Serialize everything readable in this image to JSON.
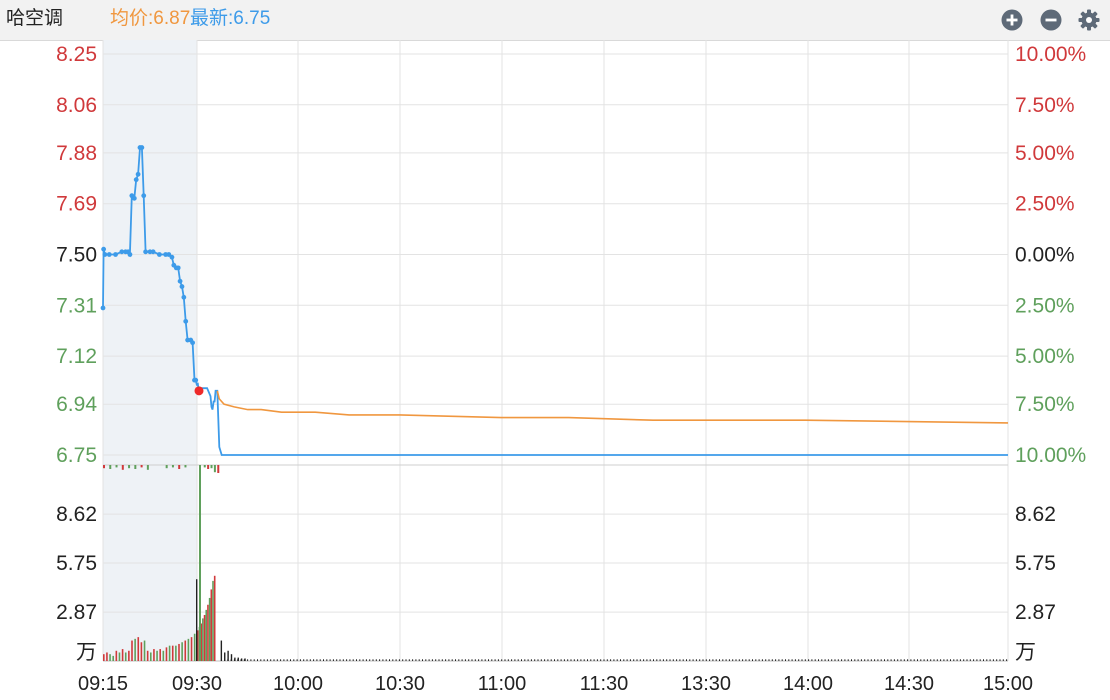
{
  "header": {
    "stock_name": "哈空调",
    "avg_label": "均价:6.87",
    "last_label": "最新:6.75",
    "avg_color": "#f0973f",
    "last_color": "#3d9be9",
    "icons": [
      "plus-circle-icon",
      "minus-circle-icon",
      "gear-icon"
    ]
  },
  "colors": {
    "up": "#d0393b",
    "down": "#5fa05c",
    "neutral": "#222222",
    "price_line": "#3d9be9",
    "avg_line": "#f0973f",
    "auction_bg": "#eef2f6",
    "grid": "#e3e3e3"
  },
  "chart_data": {
    "type": "line",
    "title": "",
    "x_ticks": [
      "09:15",
      "09:30",
      "10:00",
      "10:30",
      "11:00",
      "11:30",
      "13:30",
      "14:00",
      "14:30",
      "15:00"
    ],
    "price_axis": {
      "ylim": [
        6.75,
        8.25
      ],
      "left_ticks": [
        "8.25",
        "8.06",
        "7.88",
        "7.69",
        "7.50",
        "7.31",
        "7.12",
        "6.94",
        "6.75"
      ],
      "left_tick_values": [
        8.25,
        8.06,
        7.88,
        7.69,
        7.5,
        7.31,
        7.12,
        6.94,
        6.75
      ],
      "right_ticks": [
        "10.00%",
        "7.50%",
        "5.00%",
        "2.50%",
        "0.00%",
        "2.50%",
        "5.00%",
        "7.50%",
        "10.00%"
      ],
      "prev_close": 7.5
    },
    "volume_axis": {
      "unit": "万",
      "ticks": [
        "8.62",
        "5.75",
        "2.87"
      ],
      "tick_values": [
        8.62,
        5.75,
        2.87
      ],
      "ylim": [
        0,
        11.5
      ]
    },
    "series": [
      {
        "name": "最新",
        "note_x_in_minutes": "x is minutes since 09:15, 0-255",
        "points": [
          [
            0,
            7.3
          ],
          [
            0.1,
            7.52
          ],
          [
            0.3,
            7.5
          ],
          [
            1,
            7.5
          ],
          [
            2,
            7.5
          ],
          [
            3,
            7.51
          ],
          [
            3.6,
            7.51
          ],
          [
            4,
            7.51
          ],
          [
            4.3,
            7.5
          ],
          [
            4.6,
            7.72
          ],
          [
            5,
            7.71
          ],
          [
            5.3,
            7.78
          ],
          [
            5.6,
            7.8
          ],
          [
            5.9,
            7.9
          ],
          [
            6.2,
            7.9
          ],
          [
            6.5,
            7.72
          ],
          [
            6.8,
            7.51
          ],
          [
            7.5,
            7.51
          ],
          [
            8,
            7.51
          ],
          [
            9,
            7.5
          ],
          [
            10,
            7.5
          ],
          [
            10.5,
            7.5
          ],
          [
            11,
            7.49
          ],
          [
            11.3,
            7.46
          ],
          [
            11.7,
            7.45
          ],
          [
            12,
            7.45
          ],
          [
            12.3,
            7.4
          ],
          [
            12.6,
            7.38
          ],
          [
            12.9,
            7.34
          ],
          [
            13.2,
            7.25
          ],
          [
            13.5,
            7.18
          ],
          [
            14,
            7.18
          ],
          [
            14.3,
            7.17
          ],
          [
            14.6,
            7.03
          ],
          [
            14.8,
            7.03
          ],
          [
            15,
            7.01
          ],
          [
            15.2,
            7.02
          ],
          [
            15.4,
            7.0
          ],
          [
            16,
            7.0
          ],
          [
            17,
            7.0
          ],
          [
            18,
            7.0
          ],
          [
            19,
            6.97
          ],
          [
            19.3,
            6.93
          ],
          [
            19.6,
            6.92
          ],
          [
            19.9,
            6.95
          ],
          [
            20.2,
            6.95
          ],
          [
            20.5,
            6.99
          ],
          [
            21,
            6.99
          ],
          [
            21.6,
            6.78
          ],
          [
            22.3,
            6.75
          ],
          [
            255,
            6.75
          ]
        ]
      },
      {
        "name": "均价",
        "points": [
          [
            21,
            6.99
          ],
          [
            21.6,
            6.96
          ],
          [
            23,
            6.94
          ],
          [
            26,
            6.93
          ],
          [
            30,
            6.92
          ],
          [
            34,
            6.92
          ],
          [
            40,
            6.91
          ],
          [
            50,
            6.91
          ],
          [
            60,
            6.9
          ],
          [
            75,
            6.9
          ],
          [
            105,
            6.89
          ],
          [
            125,
            6.89
          ],
          [
            150,
            6.88
          ],
          [
            195,
            6.88
          ],
          [
            255,
            6.87
          ]
        ]
      }
    ],
    "volume": {
      "auction_bars": [
        [
          0,
          0.4,
          "up"
        ],
        [
          0.5,
          0.5,
          "up"
        ],
        [
          1,
          0.4,
          "down"
        ],
        [
          1.5,
          0.3,
          "down"
        ],
        [
          2,
          0.6,
          "up"
        ],
        [
          2.5,
          0.5,
          "down"
        ],
        [
          3,
          0.7,
          "up"
        ],
        [
          3.5,
          0.5,
          "down"
        ],
        [
          4,
          0.6,
          "up"
        ],
        [
          4.5,
          1.2,
          "up"
        ],
        [
          5,
          1.3,
          "down"
        ],
        [
          5.5,
          1.4,
          "up"
        ],
        [
          6,
          1.1,
          "up"
        ],
        [
          6.5,
          1.2,
          "down"
        ],
        [
          7,
          0.6,
          "up"
        ],
        [
          7.5,
          0.5,
          "down"
        ],
        [
          8,
          0.7,
          "up"
        ],
        [
          8.5,
          0.6,
          "down"
        ],
        [
          9,
          0.7,
          "up"
        ],
        [
          9.5,
          0.6,
          "down"
        ],
        [
          10,
          0.8,
          "up"
        ],
        [
          10.5,
          0.9,
          "down"
        ],
        [
          11,
          0.9,
          "up"
        ],
        [
          11.5,
          0.9,
          "down"
        ],
        [
          12,
          1.0,
          "up"
        ],
        [
          12.5,
          1.1,
          "down"
        ],
        [
          13,
          1.2,
          "up"
        ],
        [
          13.5,
          1.3,
          "down"
        ],
        [
          14,
          1.4,
          "up"
        ],
        [
          14.5,
          1.6,
          "down"
        ],
        [
          15,
          1.8,
          "up"
        ],
        [
          15.5,
          2.0,
          "down"
        ],
        [
          16,
          2.2,
          "up"
        ],
        [
          16.5,
          2.5,
          "down"
        ],
        [
          17,
          2.7,
          "up"
        ],
        [
          17.5,
          3.0,
          "down"
        ],
        [
          18,
          3.3,
          "up"
        ],
        [
          18.5,
          3.7,
          "down"
        ],
        [
          19,
          4.2,
          "up"
        ],
        [
          19.5,
          4.7,
          "down"
        ],
        [
          20,
          5.0,
          "up"
        ]
      ],
      "open_bar": [
        21,
        11.5,
        "down"
      ],
      "trade_bars": [
        [
          20.5,
          4.8
        ],
        [
          22,
          1.2
        ],
        [
          23,
          0.5
        ],
        [
          24,
          0.6
        ],
        [
          25,
          0.4
        ],
        [
          26,
          0.2
        ],
        [
          27,
          0.2
        ],
        [
          28,
          0.15
        ],
        [
          29,
          0.15
        ]
      ],
      "trade_tail_level": 0.1
    },
    "flow_bars": [
      [
        0,
        -0.4
      ],
      [
        1,
        -0.5
      ],
      [
        2,
        -0.3
      ],
      [
        3,
        -0.6
      ],
      [
        4,
        -0.4
      ],
      [
        5,
        -0.5
      ],
      [
        6,
        -0.3
      ],
      [
        7,
        -0.6
      ],
      [
        10,
        -0.4
      ],
      [
        11,
        -0.3
      ],
      [
        12,
        -0.5
      ],
      [
        13,
        -0.3
      ],
      [
        17,
        -0.3
      ],
      [
        18,
        -0.5
      ],
      [
        19,
        -0.4
      ],
      [
        20,
        -0.9
      ],
      [
        21,
        -1.0
      ]
    ]
  }
}
